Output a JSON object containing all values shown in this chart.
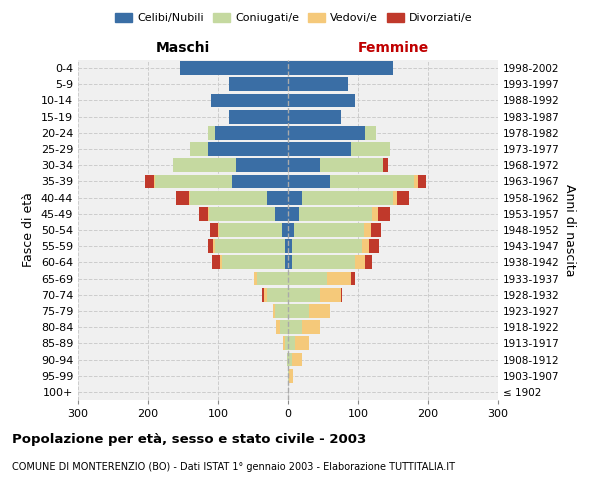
{
  "age_groups": [
    "100+",
    "95-99",
    "90-94",
    "85-89",
    "80-84",
    "75-79",
    "70-74",
    "65-69",
    "60-64",
    "55-59",
    "50-54",
    "45-49",
    "40-44",
    "35-39",
    "30-34",
    "25-29",
    "20-24",
    "15-19",
    "10-14",
    "5-9",
    "0-4"
  ],
  "birth_years": [
    "≤ 1902",
    "1903-1907",
    "1908-1912",
    "1913-1917",
    "1918-1922",
    "1923-1927",
    "1928-1932",
    "1933-1937",
    "1938-1942",
    "1943-1947",
    "1948-1952",
    "1953-1957",
    "1958-1962",
    "1963-1967",
    "1968-1972",
    "1973-1977",
    "1978-1982",
    "1983-1987",
    "1988-1992",
    "1993-1997",
    "1998-2002"
  ],
  "maschi": {
    "celibi": [
      0,
      0,
      0,
      0,
      0,
      0,
      0,
      0,
      5,
      5,
      8,
      18,
      30,
      80,
      75,
      115,
      105,
      85,
      110,
      85,
      155
    ],
    "coniugati": [
      0,
      0,
      2,
      5,
      12,
      18,
      30,
      45,
      90,
      100,
      90,
      95,
      110,
      110,
      90,
      25,
      10,
      0,
      0,
      0,
      0
    ],
    "vedovi": [
      0,
      0,
      0,
      2,
      5,
      3,
      5,
      3,
      2,
      2,
      2,
      2,
      2,
      2,
      0,
      0,
      0,
      0,
      0,
      0,
      0
    ],
    "divorziati": [
      0,
      0,
      0,
      0,
      0,
      0,
      2,
      0,
      12,
      8,
      12,
      12,
      18,
      12,
      0,
      0,
      0,
      0,
      0,
      0,
      0
    ]
  },
  "femmine": {
    "nubili": [
      0,
      0,
      0,
      0,
      0,
      0,
      0,
      0,
      5,
      5,
      8,
      15,
      20,
      60,
      45,
      90,
      110,
      75,
      95,
      85,
      150
    ],
    "coniugate": [
      0,
      2,
      5,
      10,
      20,
      30,
      45,
      55,
      90,
      100,
      100,
      105,
      130,
      120,
      90,
      55,
      15,
      0,
      0,
      0,
      0
    ],
    "vedove": [
      0,
      5,
      15,
      20,
      25,
      30,
      30,
      35,
      15,
      10,
      10,
      8,
      5,
      5,
      0,
      0,
      0,
      0,
      0,
      0,
      0
    ],
    "divorziate": [
      0,
      0,
      0,
      0,
      0,
      0,
      2,
      5,
      10,
      15,
      15,
      18,
      18,
      12,
      8,
      0,
      0,
      0,
      0,
      0,
      0
    ]
  },
  "colors": {
    "celibi": "#3a6ea5",
    "coniugati": "#c5d9a0",
    "vedovi": "#f5c97a",
    "divorziati": "#c0392b"
  },
  "xlim": 300,
  "title": "Popolazione per età, sesso e stato civile - 2003",
  "subtitle": "COMUNE DI MONTERENZIO (BO) - Dati ISTAT 1° gennaio 2003 - Elaborazione TUTTITALIA.IT",
  "ylabel_left": "Fasce di età",
  "ylabel_right": "Anni di nascita",
  "maschi_label": "Maschi",
  "femmine_label": "Femmine",
  "legend_labels": [
    "Celibi/Nubili",
    "Coniugati/e",
    "Vedovi/e",
    "Divorziati/e"
  ]
}
